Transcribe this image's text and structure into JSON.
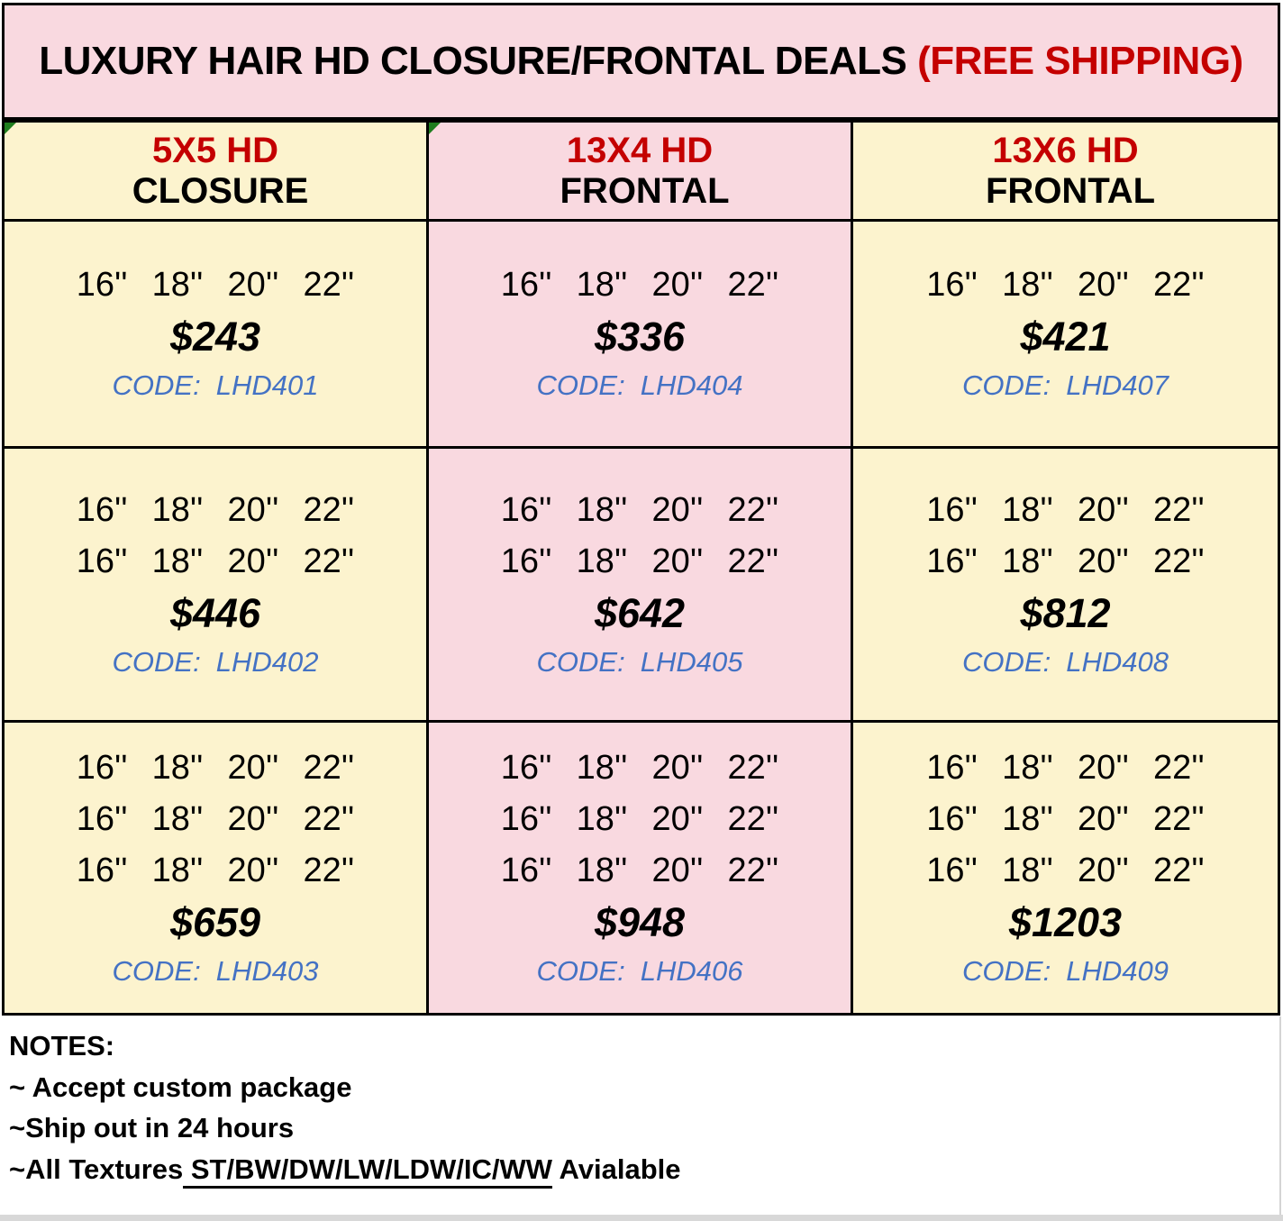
{
  "title": {
    "main": "LUXURY HAIR HD CLOSURE/FRONTAL DEALS ",
    "highlight": "(FREE SHIPPING)"
  },
  "colors": {
    "banner_bg": "#F9D9E0",
    "yellow_cell": "#FCF3CE",
    "pink_cell": "#F9D9E0",
    "accent_red": "#C40000",
    "code_blue": "#4472C4",
    "marker_green": "#1E7D1E",
    "border_black": "#000000",
    "footer_gray": "#D8D8D8"
  },
  "table": {
    "columns": [
      {
        "id": "5x5-hd-closure",
        "header": {
          "highlight": "5X5 HD",
          "rest": " CLOSURE"
        },
        "theme": "yellow",
        "corner_marker": true,
        "deals": [
          {
            "size_lines": [
              "16''  18''  20''  22''"
            ],
            "price": "$243",
            "code_label": "CODE:",
            "code": "LHD401"
          },
          {
            "size_lines": [
              "16''  18''  20''  22''",
              "16''  18''  20''  22''"
            ],
            "price": "$446",
            "code_label": "CODE:",
            "code": "LHD402"
          },
          {
            "size_lines": [
              "16''  18''  20''  22''",
              "16''  18''  20''  22''",
              "16''  18''  20''  22''"
            ],
            "price": "$659",
            "code_label": "CODE:",
            "code": "LHD403"
          }
        ]
      },
      {
        "id": "13x4-hd-frontal",
        "header": {
          "highlight": "13X4 HD",
          "rest": " FRONTAL"
        },
        "theme": "pink",
        "corner_marker": true,
        "deals": [
          {
            "size_lines": [
              "16''  18''  20''  22''"
            ],
            "price": "$336",
            "code_label": "CODE:",
            "code": "LHD404"
          },
          {
            "size_lines": [
              "16''  18''  20''  22''",
              "16''  18''  20''  22''"
            ],
            "price": "$642",
            "code_label": "CODE:",
            "code": "LHD405"
          },
          {
            "size_lines": [
              "16''  18''  20''  22''",
              "16''  18''  20''  22''",
              "16''  18''  20''  22''"
            ],
            "price": "$948",
            "code_label": "CODE:",
            "code": "LHD406"
          }
        ]
      },
      {
        "id": "13x6-hd-frontal",
        "header": {
          "highlight": "13X6 HD",
          "rest": " FRONTAL"
        },
        "theme": "yellow",
        "corner_marker": false,
        "deals": [
          {
            "size_lines": [
              "16''  18''  20''  22''"
            ],
            "price": "$421",
            "code_label": "CODE:",
            "code": "LHD407"
          },
          {
            "size_lines": [
              "16''  18''  20''  22''",
              "16''  18''  20''  22''"
            ],
            "price": "$812",
            "code_label": "CODE:",
            "code": "LHD408"
          },
          {
            "size_lines": [
              "16''  18''  20''  22''",
              "16''  18''  20''  22''",
              "16''  18''  20''  22''"
            ],
            "price": "$1203",
            "code_label": "CODE:",
            "code": "LHD409"
          }
        ]
      }
    ]
  },
  "notes": {
    "heading": "NOTES:",
    "items": [
      "~ Accept custom package",
      "~Ship out in 24 hours"
    ],
    "textures_line": {
      "prefix": "~All Textures",
      "underlined": " ST/BW/DW/LW/LDW/IC/WW",
      "suffix": " Avialable"
    }
  }
}
